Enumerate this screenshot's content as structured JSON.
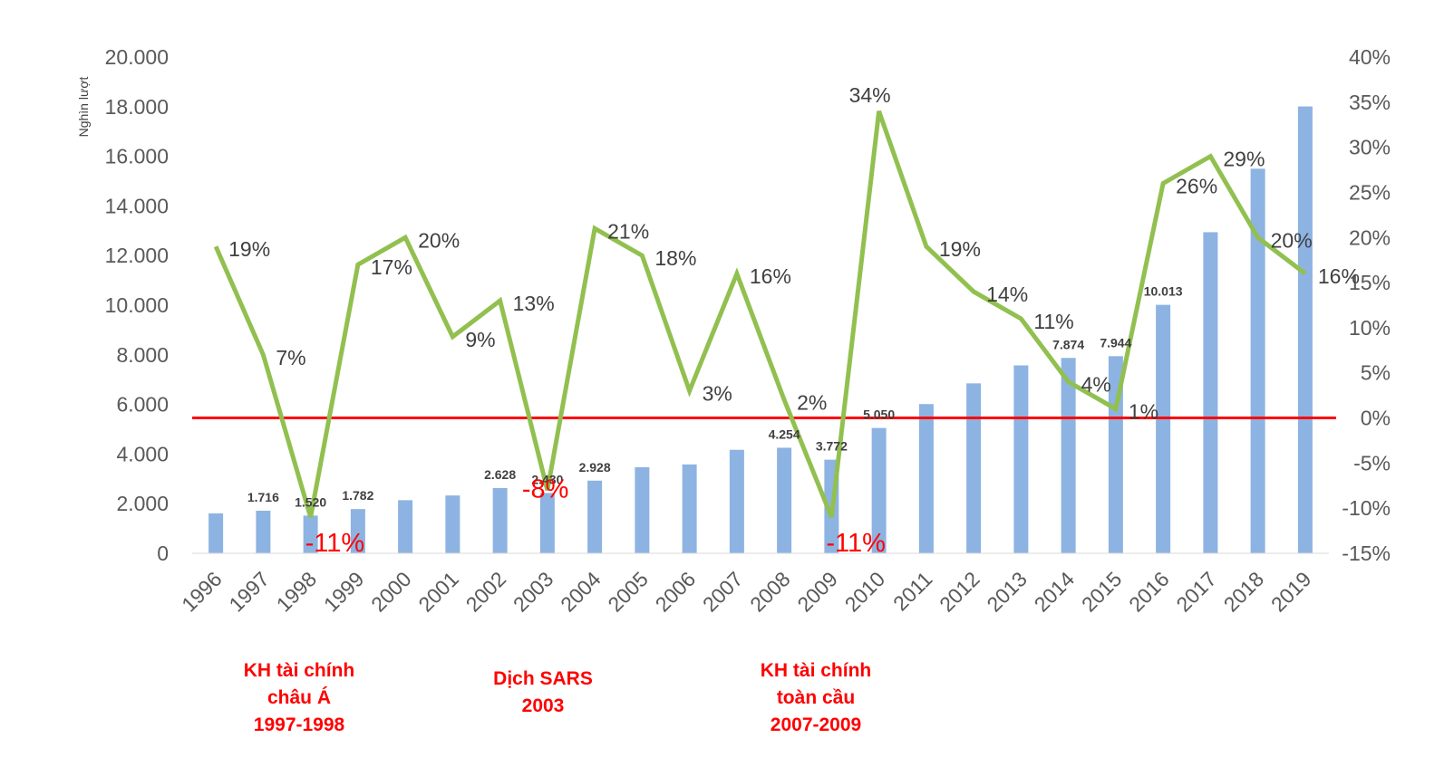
{
  "chart_data": {
    "type": "bar",
    "categories": [
      "1996",
      "1997",
      "1998",
      "1999",
      "2000",
      "2001",
      "2002",
      "2003",
      "2004",
      "2005",
      "2006",
      "2007",
      "2008",
      "2009",
      "2010",
      "2011",
      "2012",
      "2013",
      "2014",
      "2015",
      "2016",
      "2017",
      "2018",
      "2019"
    ],
    "series": [
      {
        "type": "bar",
        "axis": "left",
        "values": [
          1608,
          1716,
          1520,
          1782,
          2140,
          2330,
          2628,
          2430,
          2928,
          3470,
          3580,
          4170,
          4254,
          3772,
          5050,
          6014,
          6848,
          7572,
          7874,
          7944,
          10013,
          12940,
          15500,
          18009
        ],
        "labels": [
          "",
          "1.716",
          "1.520",
          "1.782",
          "",
          "",
          "2.628",
          "2.430",
          "2.928",
          "",
          "",
          "",
          "4.254",
          "3.772",
          "5.050",
          "",
          "",
          "",
          "7.874",
          "7.944",
          "10.013",
          "",
          "",
          ""
        ],
        "color": "#8db3e2"
      },
      {
        "type": "line",
        "axis": "right",
        "values": [
          19,
          7,
          -11,
          17,
          20,
          9,
          13,
          -8,
          21,
          18,
          3,
          16,
          2,
          -11,
          34,
          19,
          14,
          11,
          4,
          1,
          26,
          29,
          20,
          16
        ],
        "labels": [
          "19%",
          "7%",
          "-11%",
          "17%",
          "20%",
          "9%",
          "13%",
          "-8%",
          "21%",
          "18%",
          "3%",
          "16%",
          "2%",
          "-11%",
          "34%",
          "19%",
          "14%",
          "11%",
          "4%",
          "1%",
          "26%",
          "29%",
          "20%",
          "16%"
        ],
        "color": "#92c050"
      }
    ],
    "ylabel": "Nghìn lượt",
    "ylim": [
      0,
      20000
    ],
    "yticks": [
      "0",
      "2.000",
      "4.000",
      "6.000",
      "8.000",
      "10.000",
      "12.000",
      "14.000",
      "16.000",
      "18.000",
      "20.000"
    ],
    "y2lim": [
      -15,
      40
    ],
    "y2ticks": [
      "-15%",
      "-10%",
      "-5%",
      "0%",
      "5%",
      "10%",
      "15%",
      "20%",
      "25%",
      "30%",
      "35%",
      "40%"
    ],
    "reference_line": {
      "axis": "right",
      "value": 0,
      "color": "#ff0000"
    },
    "negative_label_color": "#ff0000",
    "annotations": [
      {
        "lines": [
          "KH tài chính",
          "châu Á",
          "1997-1998"
        ],
        "color": "#ff0000"
      },
      {
        "lines": [
          "Dịch SARS",
          "2003"
        ],
        "color": "#ff0000"
      },
      {
        "lines": [
          "KH tài chính",
          "toàn cầu",
          "2007-2009"
        ],
        "color": "#ff0000"
      }
    ],
    "grid": false,
    "legend": "none"
  }
}
